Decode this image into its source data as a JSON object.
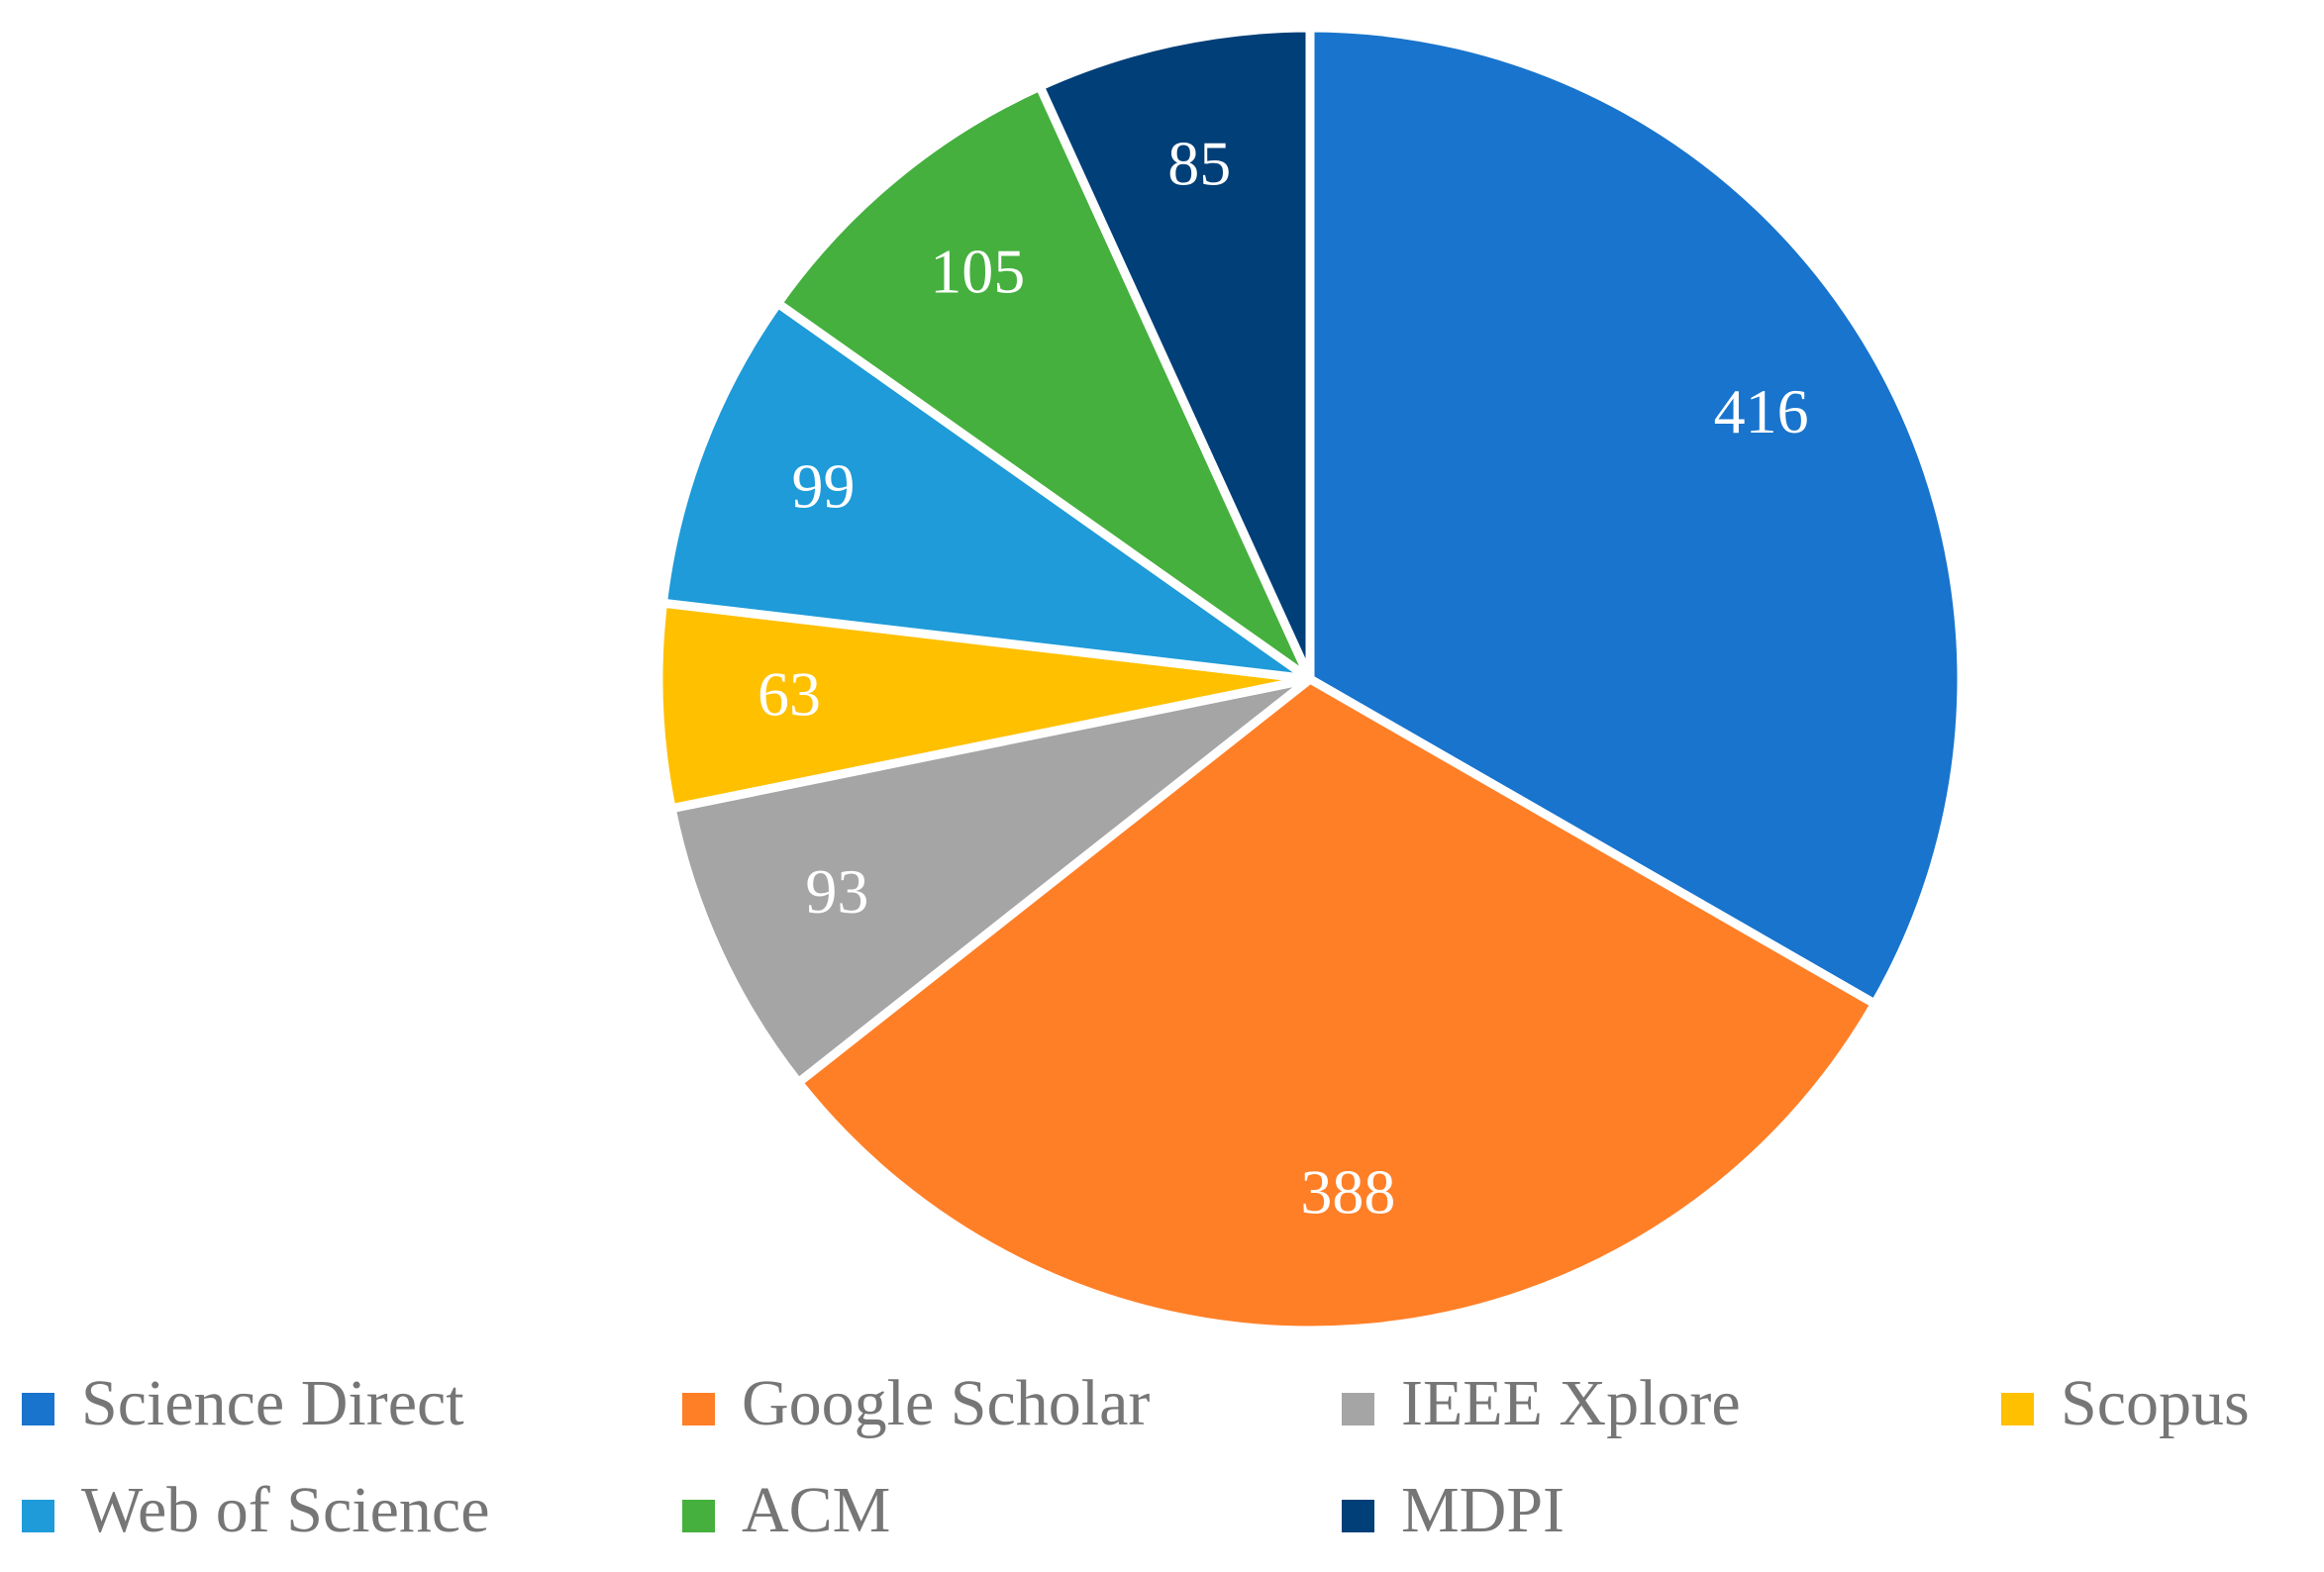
{
  "chart_data": {
    "type": "pie",
    "categories": [
      "Science Direct",
      "Google Scholar",
      "IEEE Xplore",
      "Scopus",
      "Web of Science",
      "ACM",
      "MDPI"
    ],
    "values": [
      416,
      388,
      93,
      63,
      99,
      105,
      85
    ],
    "colors": [
      "#1874cd",
      "#ff7f27",
      "#a5a5a5",
      "#ffc000",
      "#1e9bd8",
      "#45b03e",
      "#003f78"
    ],
    "legend": "bottom"
  }
}
